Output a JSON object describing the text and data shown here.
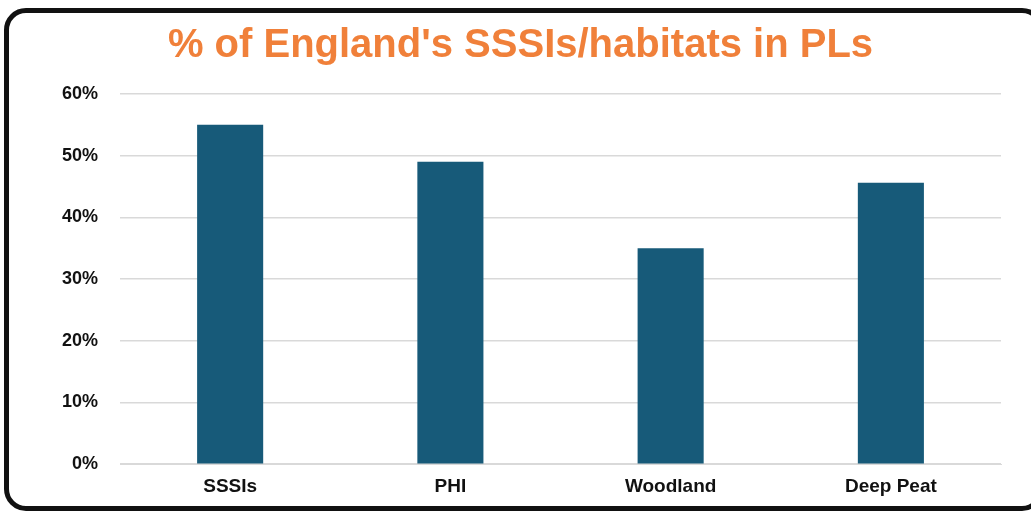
{
  "chart_data": {
    "type": "bar",
    "title": "% of England's SSSIs/habitats in PLs",
    "categories": [
      "SSSIs",
      "PHI",
      "Woodland",
      "Deep Peat"
    ],
    "values": [
      55,
      49,
      35,
      45.6
    ],
    "color": "#175a79",
    "ylim": [
      0,
      60
    ],
    "yticks": [
      {
        "value": 0,
        "label": "0%"
      },
      {
        "value": 10,
        "label": "10%"
      },
      {
        "value": 20,
        "label": "20%"
      },
      {
        "value": 30,
        "label": "30%"
      },
      {
        "value": 40,
        "label": "40%"
      },
      {
        "value": 50,
        "label": "50%"
      },
      {
        "value": 60,
        "label": "60%"
      }
    ],
    "grid": "y",
    "legend": false
  }
}
